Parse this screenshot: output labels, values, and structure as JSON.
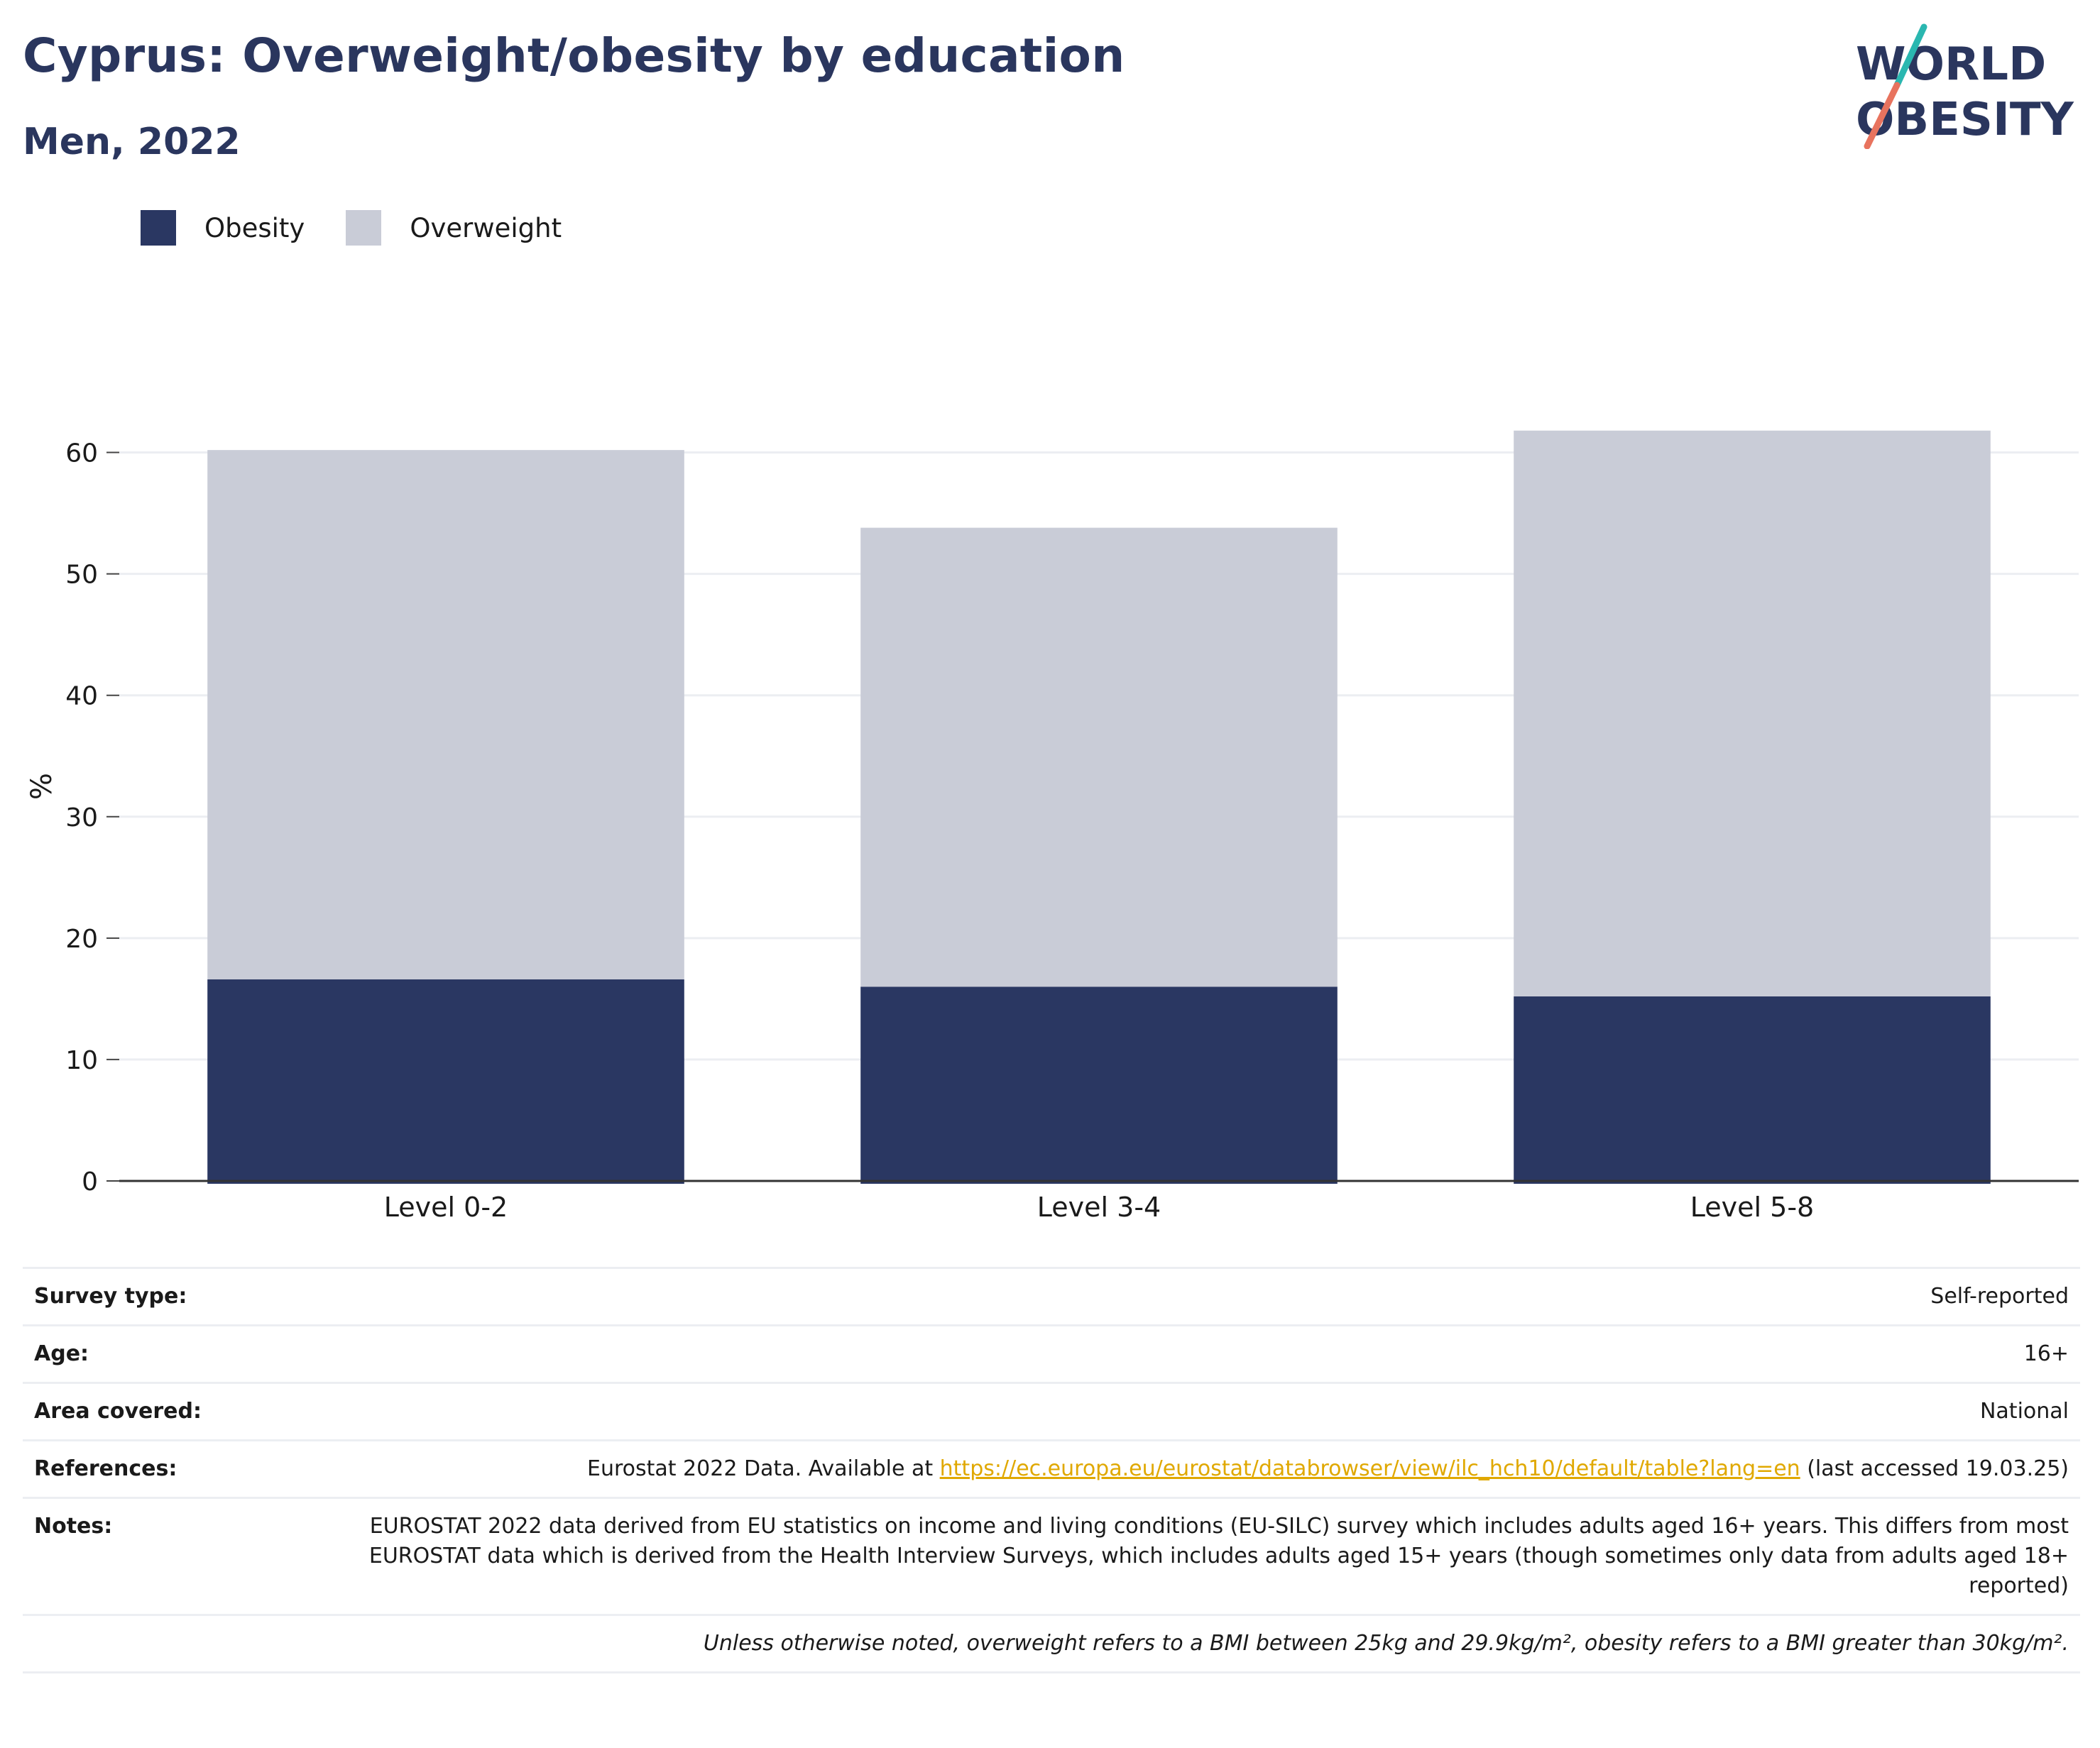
{
  "header": {
    "title": "Cyprus: Overweight/obesity by education",
    "subtitle": "Men, 2022",
    "logo_line1": "WORLD",
    "logo_line2": "OBESITY"
  },
  "colors": {
    "obesity": "#2a3762",
    "overweight": "#c9ccd7",
    "title": "#2a365e",
    "link": "#e0a800",
    "logo_teal": "#2ab7b0",
    "logo_coral": "#e8735e"
  },
  "legend": [
    {
      "label": "Obesity",
      "color": "#2a3762"
    },
    {
      "label": "Overweight",
      "color": "#c9ccd7"
    }
  ],
  "chart_data": {
    "type": "bar",
    "stacked": true,
    "categories": [
      "Level 0-2",
      "Level 3-4",
      "Level 5-8"
    ],
    "series": [
      {
        "name": "Obesity",
        "values": [
          16.6,
          16.0,
          15.2
        ]
      },
      {
        "name": "Overweight",
        "values": [
          43.6,
          37.8,
          46.6
        ]
      }
    ],
    "totals": [
      60.2,
      53.8,
      61.8
    ],
    "ylabel": "%",
    "ylim": [
      0,
      65
    ],
    "yticks": [
      0,
      10,
      20,
      30,
      40,
      50,
      60
    ],
    "grid": true,
    "legend_position": "top-left"
  },
  "info": {
    "survey_type": {
      "label": "Survey type:",
      "value": "Self-reported"
    },
    "age": {
      "label": "Age:",
      "value": "16+"
    },
    "area": {
      "label": "Area covered:",
      "value": "National"
    },
    "references": {
      "label": "References:",
      "prefix": "Eurostat 2022 Data. Available at ",
      "link": "https://ec.europa.eu/eurostat/databrowser/view/ilc_hch10/default/table?lang=en",
      "suffix": " (last accessed 19.03.25)"
    },
    "notes": {
      "label": "Notes:",
      "value": "EUROSTAT 2022 data derived from EU statistics on income and living conditions (EU-SILC) survey which includes adults aged 16+ years. This differs from most EUROSTAT data which is derived from the Health Interview Surveys, which includes adults aged 15+ years (though sometimes only data from adults aged 18+ reported)"
    },
    "footnote": "Unless otherwise noted, overweight refers to a BMI between 25kg and 29.9kg/m², obesity refers to a BMI greater than 30kg/m²."
  }
}
